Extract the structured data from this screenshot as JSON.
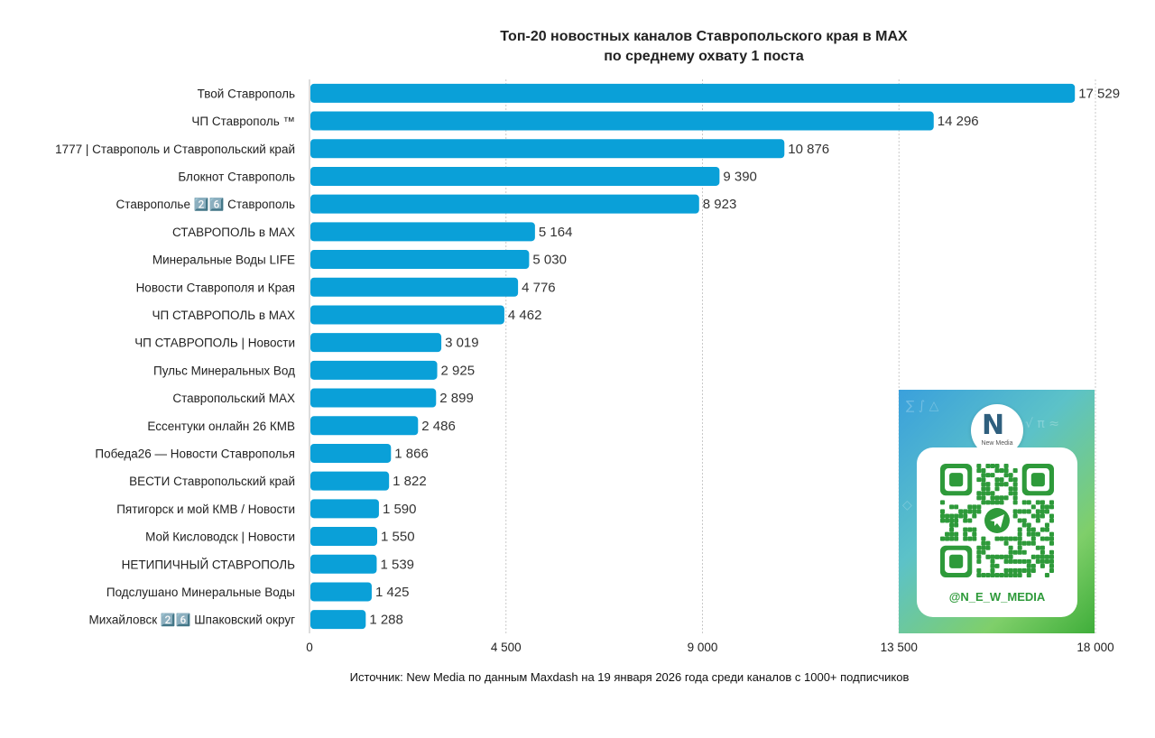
{
  "chart_data": {
    "type": "bar",
    "orientation": "horizontal",
    "title": "Топ-20 новостных каналов Ставропольского края в MAX",
    "subtitle": "по среднему охвату 1 поста",
    "categories": [
      "Твой Ставрополь",
      "ЧП Ставрополь ™",
      "1777 | Ставрополь и Ставропольский край",
      "Блокнот Ставрополь",
      "Ставрополье 2️⃣6️⃣ Ставрополь",
      "СТАВРОПОЛЬ в MAX",
      "Минеральные Воды LIFE",
      "Новости Ставрополя и Края",
      "ЧП СТАВРОПОЛЬ в MAX",
      "ЧП СТАВРОПОЛЬ | Новости",
      "Пульс Минеральных Вод",
      "Ставропольский MAX",
      "Ессентуки онлайн 26 КМВ",
      "Победа26 — Новости Ставрополья",
      "ВЕСТИ Ставропольский край",
      "Пятигорск и мой КМВ / Новости",
      "Мой Кисловодск | Новости",
      "НЕТИПИЧНЫЙ СТАВРОПОЛЬ",
      "Подслушано Минеральные Воды",
      "Михайловск 2️⃣6️⃣ Шпаковский округ"
    ],
    "values": [
      17529,
      14296,
      10876,
      9390,
      8923,
      5164,
      5030,
      4776,
      4462,
      3019,
      2925,
      2899,
      2486,
      1866,
      1822,
      1590,
      1550,
      1539,
      1425,
      1288
    ],
    "value_labels": [
      "17 529",
      "14 296",
      "10 876",
      "9 390",
      "8 923",
      "5 164",
      "5 030",
      "4 776",
      "4 462",
      "3 019",
      "2 925",
      "2 899",
      "2 486",
      "1 866",
      "1 822",
      "1 590",
      "1 550",
      "1 539",
      "1 425",
      "1 288"
    ],
    "xlim": [
      0,
      18000
    ],
    "xticks": [
      0,
      4500,
      9000,
      13500,
      18000
    ],
    "xtick_labels": [
      "0",
      "4 500",
      "9 000",
      "13 500",
      "18 000"
    ],
    "grid": "vertical",
    "bar_color": "#0aa0d8"
  },
  "source_note": "Источник: New Media по данным Maxdash на 19 января 2026 года среди каналов с 1000+ подписчиков",
  "promo": {
    "logo_text": "New Media",
    "handle": "@N_E_W_MEDIA"
  }
}
